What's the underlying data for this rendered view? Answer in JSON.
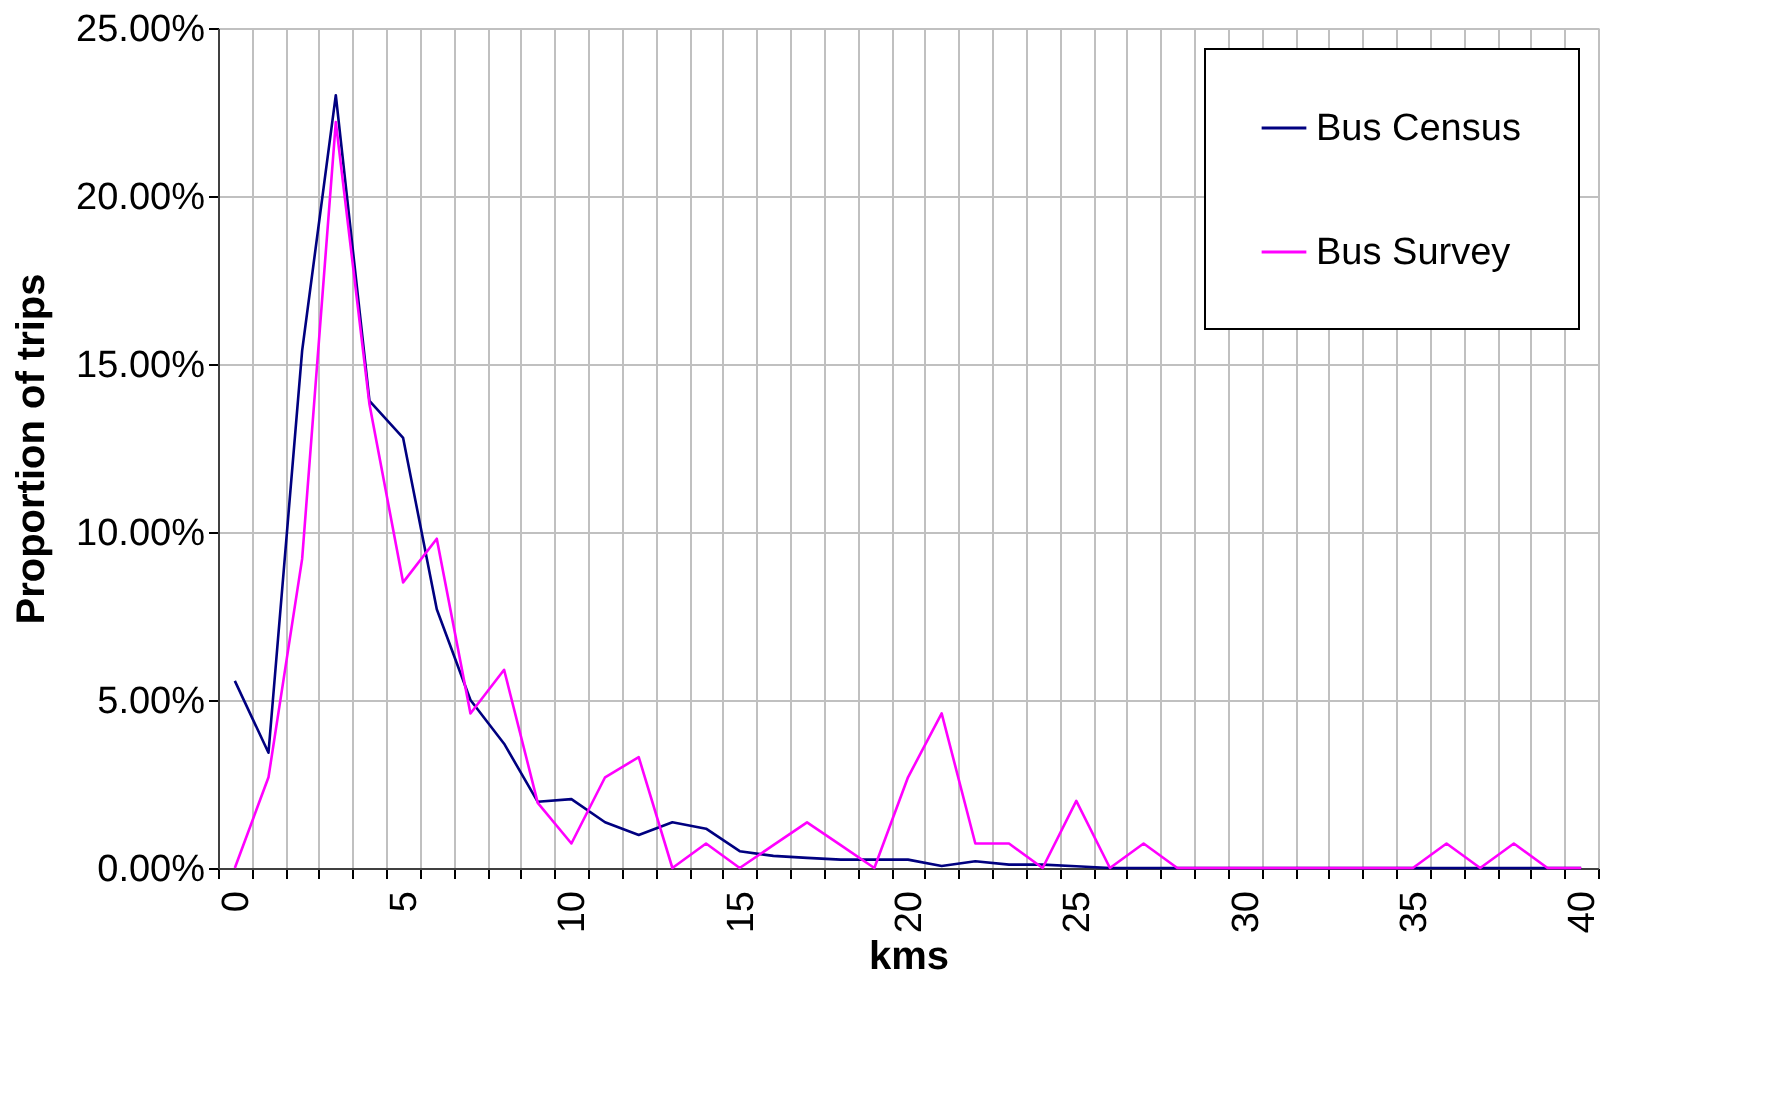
{
  "chart_data": {
    "type": "line",
    "xlabel": "kms",
    "ylabel": "Proportion of trips",
    "categories": [
      "0",
      null,
      null,
      null,
      null,
      "5",
      null,
      null,
      null,
      null,
      "10",
      null,
      null,
      null,
      null,
      "15",
      null,
      null,
      null,
      null,
      "20",
      null,
      null,
      null,
      null,
      "25",
      null,
      null,
      null,
      null,
      "30",
      null,
      null,
      null,
      null,
      "35",
      null,
      null,
      null,
      null,
      "40"
    ],
    "series": [
      {
        "name": "Bus Census",
        "color": "#000080",
        "values": [
          5.57,
          3.43,
          15.4,
          23.0,
          13.9,
          12.8,
          7.7,
          5.0,
          3.7,
          1.97,
          2.05,
          1.36,
          0.98,
          1.36,
          1.17,
          0.5,
          0.36,
          0.3,
          0.25,
          0.25,
          0.25,
          0.06,
          0.2,
          0.1,
          0.1,
          0.05,
          0,
          0,
          0,
          0,
          0,
          0,
          0,
          0,
          0,
          0,
          0,
          0,
          0,
          0,
          0
        ]
      },
      {
        "name": "Bus Survey",
        "color": "#ff00ff",
        "values": [
          0,
          2.7,
          9.2,
          22.2,
          13.8,
          8.5,
          9.8,
          4.6,
          5.9,
          1.94,
          0.73,
          2.7,
          3.3,
          0,
          0.73,
          0,
          0.68,
          1.36,
          0.68,
          0,
          2.7,
          4.6,
          0.73,
          0.73,
          0,
          2.0,
          0,
          0.73,
          0,
          0,
          0,
          0,
          0,
          0,
          0,
          0,
          0.73,
          0,
          0.73,
          0,
          0
        ]
      }
    ],
    "ylim": [
      0,
      25
    ],
    "yticks": [
      {
        "value": 0,
        "label": "0.00%"
      },
      {
        "value": 5,
        "label": "5.00%"
      },
      {
        "value": 10,
        "label": "10.00%"
      },
      {
        "value": 15,
        "label": "15.00%"
      },
      {
        "value": 20,
        "label": "20.00%"
      },
      {
        "value": 25,
        "label": "25.00%"
      }
    ],
    "grid": true,
    "legend": "top right",
    "marker": "none",
    "line_style": "solid"
  }
}
